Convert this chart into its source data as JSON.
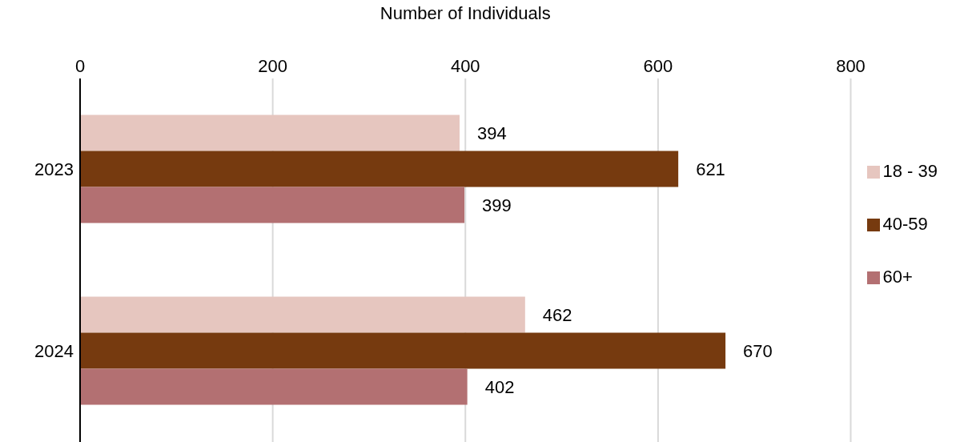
{
  "chart_data": {
    "type": "bar",
    "orientation": "horizontal",
    "xlabel": "Number of Individuals",
    "categories": [
      "2023",
      "2024"
    ],
    "series": [
      {
        "name": "18 - 39",
        "color": "#e6c6bf",
        "values": [
          394,
          462
        ]
      },
      {
        "name": "40-59",
        "color": "#763a0f",
        "values": [
          621,
          670
        ]
      },
      {
        "name": "60+",
        "color": "#b37072",
        "values": [
          399,
          402
        ]
      }
    ],
    "xlim": [
      0,
      800
    ],
    "xticks": [
      0,
      200,
      400,
      600,
      800
    ],
    "grid": "x",
    "legend": "right",
    "data_labels": true
  }
}
